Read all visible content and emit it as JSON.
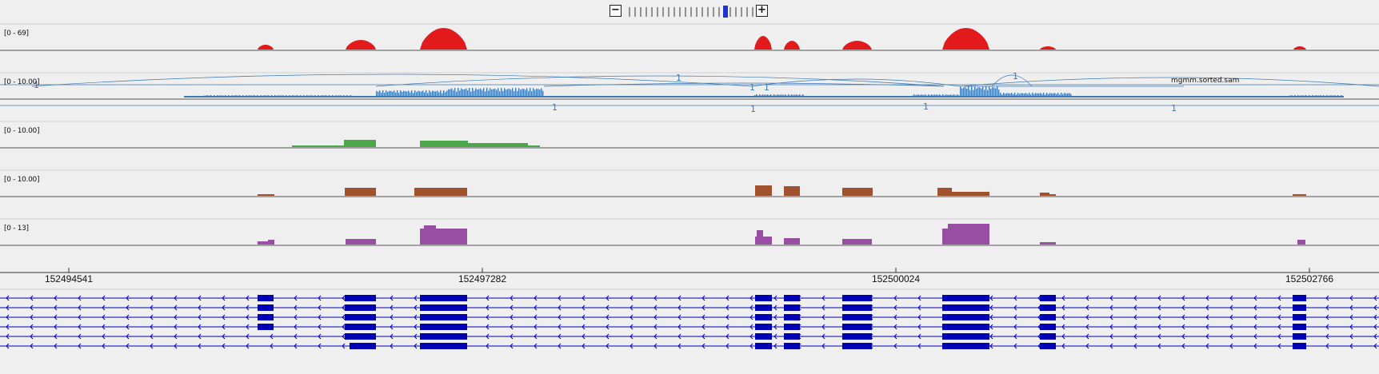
{
  "zoom": {
    "minus_icon": "minus-icon",
    "plus_icon": "plus-icon",
    "minus_label": "−",
    "plus_label": "+",
    "ticks": 25,
    "current": 17
  },
  "tracks": [
    {
      "id": "coverage-red",
      "range": "[0 - 69]",
      "color": "#e31a1c"
    },
    {
      "id": "alignments",
      "range": "[0 - 10.00]",
      "color": "#3c78b4",
      "name": "mgmm.sorted.sam"
    },
    {
      "id": "coverage-green",
      "range": "[0 - 10.00]",
      "color": "#4aa84a"
    },
    {
      "id": "coverage-brown",
      "range": "[0 - 10.00]",
      "color": "#a0522d"
    },
    {
      "id": "coverage-purple",
      "range": "[0 - 13]",
      "color": "#984ea3"
    }
  ],
  "ruler": {
    "ticks": [
      "152494541",
      "152497282",
      "152500024",
      "152502766"
    ]
  },
  "junction_labels": [
    "1",
    "1",
    "1",
    "1",
    "1",
    "1",
    "1",
    "1",
    "1"
  ],
  "gene_track": {
    "color": "#0000b4",
    "rows": 6
  }
}
